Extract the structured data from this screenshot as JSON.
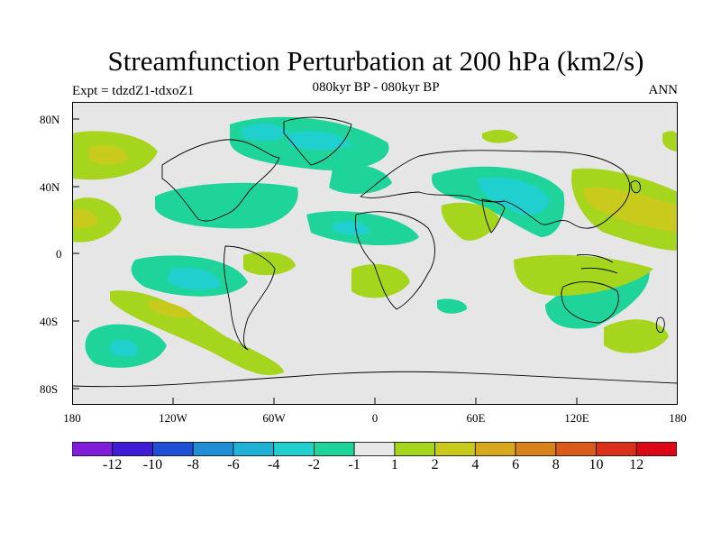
{
  "title": "Streamfunction Perturbation at 200 hPa (km2/s)",
  "subtitle": "080kyr BP - 080kyr BP",
  "left_label": "Expt = tdzdZ1-tdxoZ1",
  "right_label": "ANN",
  "y_ticks": [
    "80N",
    "40N",
    "0",
    "40S",
    "80S"
  ],
  "x_ticks": [
    "180",
    "120W",
    "60W",
    "0",
    "60E",
    "120E",
    "180"
  ],
  "colorbar": {
    "colors": [
      "#7f1ddb",
      "#3f1cd8",
      "#1f4fd4",
      "#1f8ed6",
      "#1fb2d6",
      "#1fd0cf",
      "#1fd49a",
      "#e8e8e8",
      "#a6d51e",
      "#c8cb1c",
      "#d7a81b",
      "#d9821a",
      "#da5a19",
      "#da2f18",
      "#db0616"
    ],
    "labels": [
      "-12",
      "-10",
      "-8",
      "-6",
      "-4",
      "-2",
      "-1",
      "1",
      "2",
      "4",
      "6",
      "8",
      "10",
      "12"
    ]
  },
  "palette": {
    "land_bg": "#e6e6e6",
    "positive": "#a6d51e",
    "positive_strong": "#c8cb1c",
    "negative": "#1fd49a",
    "negative_strong": "#1fd0cf"
  }
}
